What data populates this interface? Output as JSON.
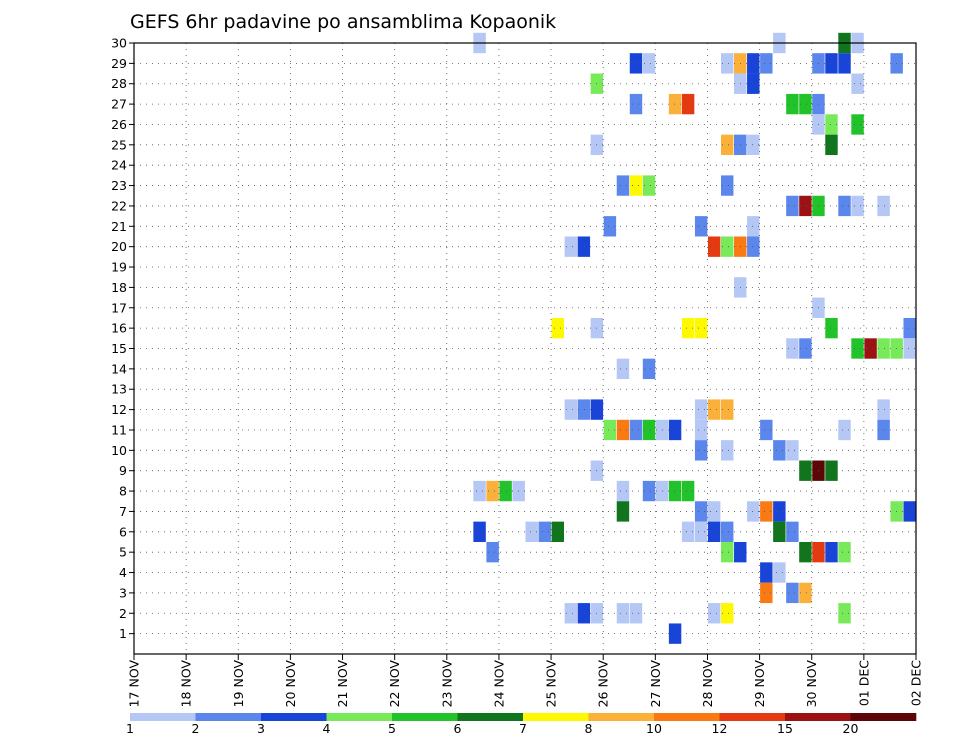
{
  "chart_data": {
    "type": "heatmap",
    "title": "GEFS 6hr padavine po ansamblima Kopaonik",
    "xlabel": "",
    "ylabel": "",
    "x_ticks": [
      "17 NOV",
      "18 NOV",
      "19 NOV",
      "20 NOV",
      "21 NOV",
      "22 NOV",
      "23 NOV",
      "24 NOV",
      "25 NOV",
      "26 NOV",
      "27 NOV",
      "28 NOV",
      "29 NOV",
      "30 NOV",
      "01 DEC",
      "02 DEC"
    ],
    "xlim": [
      0,
      60
    ],
    "y_ticks": [
      1,
      2,
      3,
      4,
      5,
      6,
      7,
      8,
      9,
      10,
      11,
      12,
      13,
      14,
      15,
      16,
      17,
      18,
      19,
      20,
      21,
      22,
      23,
      24,
      25,
      26,
      27,
      28,
      29,
      30
    ],
    "ylim": [
      0,
      30
    ],
    "grid": true,
    "colorbar": {
      "placement": "bottom",
      "labels": [
        "1",
        "2",
        "3",
        "4",
        "5",
        "6",
        "7",
        "8",
        "10",
        "12",
        "15",
        "20"
      ],
      "colors": [
        "#b4c7f5",
        "#5b86ec",
        "#1844d8",
        "#78ea5a",
        "#22c32a",
        "#11751d",
        "#fef800",
        "#fbb03a",
        "#f97a12",
        "#e43a12",
        "#9c1212",
        "#5c0608"
      ]
    },
    "cells": [
      {
        "ens": 30,
        "t": 27,
        "v": 1
      },
      {
        "ens": 30,
        "t": 50,
        "v": 1
      },
      {
        "ens": 30,
        "t": 55,
        "v": 6
      },
      {
        "ens": 30,
        "t": 56,
        "v": 1
      },
      {
        "ens": 29,
        "t": 39,
        "v": 3
      },
      {
        "ens": 29,
        "t": 40,
        "v": 1
      },
      {
        "ens": 29,
        "t": 46,
        "v": 1
      },
      {
        "ens": 29,
        "t": 47,
        "v": 8
      },
      {
        "ens": 29,
        "t": 48,
        "v": 3
      },
      {
        "ens": 29,
        "t": 49,
        "v": 2
      },
      {
        "ens": 29,
        "t": 53,
        "v": 2
      },
      {
        "ens": 29,
        "t": 54,
        "v": 3
      },
      {
        "ens": 29,
        "t": 55,
        "v": 3
      },
      {
        "ens": 29,
        "t": 59,
        "v": 2
      },
      {
        "ens": 28,
        "t": 36,
        "v": 4
      },
      {
        "ens": 28,
        "t": 47,
        "v": 1
      },
      {
        "ens": 28,
        "t": 48,
        "v": 3
      },
      {
        "ens": 28,
        "t": 56,
        "v": 1
      },
      {
        "ens": 27,
        "t": 39,
        "v": 2
      },
      {
        "ens": 27,
        "t": 42,
        "v": 8
      },
      {
        "ens": 27,
        "t": 43,
        "v": 12
      },
      {
        "ens": 27,
        "t": 51,
        "v": 5
      },
      {
        "ens": 27,
        "t": 52,
        "v": 5
      },
      {
        "ens": 27,
        "t": 53,
        "v": 2
      },
      {
        "ens": 26,
        "t": 53,
        "v": 1
      },
      {
        "ens": 26,
        "t": 54,
        "v": 4
      },
      {
        "ens": 26,
        "t": 56,
        "v": 5
      },
      {
        "ens": 25,
        "t": 36,
        "v": 1
      },
      {
        "ens": 25,
        "t": 46,
        "v": 8
      },
      {
        "ens": 25,
        "t": 47,
        "v": 2
      },
      {
        "ens": 25,
        "t": 48,
        "v": 1
      },
      {
        "ens": 25,
        "t": 54,
        "v": 6
      },
      {
        "ens": 23,
        "t": 38,
        "v": 2
      },
      {
        "ens": 23,
        "t": 39,
        "v": 7
      },
      {
        "ens": 23,
        "t": 40,
        "v": 4
      },
      {
        "ens": 23,
        "t": 46,
        "v": 2
      },
      {
        "ens": 22,
        "t": 51,
        "v": 2
      },
      {
        "ens": 22,
        "t": 52,
        "v": 15
      },
      {
        "ens": 22,
        "t": 53,
        "v": 5
      },
      {
        "ens": 22,
        "t": 55,
        "v": 2
      },
      {
        "ens": 22,
        "t": 56,
        "v": 1
      },
      {
        "ens": 22,
        "t": 58,
        "v": 1
      },
      {
        "ens": 21,
        "t": 37,
        "v": 2
      },
      {
        "ens": 21,
        "t": 44,
        "v": 2
      },
      {
        "ens": 21,
        "t": 48,
        "v": 1
      },
      {
        "ens": 20,
        "t": 34,
        "v": 1
      },
      {
        "ens": 20,
        "t": 35,
        "v": 3
      },
      {
        "ens": 20,
        "t": 45,
        "v": 12
      },
      {
        "ens": 20,
        "t": 46,
        "v": 4
      },
      {
        "ens": 20,
        "t": 47,
        "v": 10
      },
      {
        "ens": 20,
        "t": 48,
        "v": 2
      },
      {
        "ens": 18,
        "t": 47,
        "v": 1
      },
      {
        "ens": 17,
        "t": 53,
        "v": 1
      },
      {
        "ens": 16,
        "t": 33,
        "v": 7
      },
      {
        "ens": 16,
        "t": 36,
        "v": 1
      },
      {
        "ens": 16,
        "t": 43,
        "v": 7
      },
      {
        "ens": 16,
        "t": 44,
        "v": 7
      },
      {
        "ens": 16,
        "t": 54,
        "v": 5
      },
      {
        "ens": 16,
        "t": 60,
        "v": 2
      },
      {
        "ens": 15,
        "t": 51,
        "v": 1
      },
      {
        "ens": 15,
        "t": 52,
        "v": 2
      },
      {
        "ens": 15,
        "t": 56,
        "v": 5
      },
      {
        "ens": 15,
        "t": 57,
        "v": 15
      },
      {
        "ens": 15,
        "t": 58,
        "v": 4
      },
      {
        "ens": 15,
        "t": 59,
        "v": 4
      },
      {
        "ens": 15,
        "t": 60,
        "v": 1
      },
      {
        "ens": 14,
        "t": 38,
        "v": 1
      },
      {
        "ens": 14,
        "t": 40,
        "v": 2
      },
      {
        "ens": 12,
        "t": 34,
        "v": 1
      },
      {
        "ens": 12,
        "t": 35,
        "v": 2
      },
      {
        "ens": 12,
        "t": 36,
        "v": 3
      },
      {
        "ens": 12,
        "t": 44,
        "v": 1
      },
      {
        "ens": 12,
        "t": 45,
        "v": 8
      },
      {
        "ens": 12,
        "t": 46,
        "v": 8
      },
      {
        "ens": 12,
        "t": 58,
        "v": 1
      },
      {
        "ens": 11,
        "t": 37,
        "v": 4
      },
      {
        "ens": 11,
        "t": 38,
        "v": 10
      },
      {
        "ens": 11,
        "t": 39,
        "v": 2
      },
      {
        "ens": 11,
        "t": 40,
        "v": 5
      },
      {
        "ens": 11,
        "t": 41,
        "v": 1
      },
      {
        "ens": 11,
        "t": 42,
        "v": 3
      },
      {
        "ens": 11,
        "t": 44,
        "v": 1
      },
      {
        "ens": 11,
        "t": 49,
        "v": 2
      },
      {
        "ens": 11,
        "t": 55,
        "v": 1
      },
      {
        "ens": 11,
        "t": 58,
        "v": 2
      },
      {
        "ens": 10,
        "t": 44,
        "v": 2
      },
      {
        "ens": 10,
        "t": 46,
        "v": 1
      },
      {
        "ens": 10,
        "t": 50,
        "v": 2
      },
      {
        "ens": 10,
        "t": 51,
        "v": 1
      },
      {
        "ens": 9,
        "t": 36,
        "v": 1
      },
      {
        "ens": 9,
        "t": 52,
        "v": 6
      },
      {
        "ens": 9,
        "t": 53,
        "v": 20
      },
      {
        "ens": 9,
        "t": 54,
        "v": 6
      },
      {
        "ens": 8,
        "t": 27,
        "v": 1
      },
      {
        "ens": 8,
        "t": 28,
        "v": 8
      },
      {
        "ens": 8,
        "t": 29,
        "v": 5
      },
      {
        "ens": 8,
        "t": 30,
        "v": 1
      },
      {
        "ens": 8,
        "t": 38,
        "v": 1
      },
      {
        "ens": 8,
        "t": 40,
        "v": 2
      },
      {
        "ens": 8,
        "t": 41,
        "v": 1
      },
      {
        "ens": 8,
        "t": 42,
        "v": 5
      },
      {
        "ens": 8,
        "t": 43,
        "v": 5
      },
      {
        "ens": 7,
        "t": 38,
        "v": 6
      },
      {
        "ens": 7,
        "t": 44,
        "v": 2
      },
      {
        "ens": 7,
        "t": 45,
        "v": 1
      },
      {
        "ens": 7,
        "t": 48,
        "v": 1
      },
      {
        "ens": 7,
        "t": 49,
        "v": 10
      },
      {
        "ens": 7,
        "t": 50,
        "v": 3
      },
      {
        "ens": 7,
        "t": 59,
        "v": 4
      },
      {
        "ens": 7,
        "t": 60,
        "v": 3
      },
      {
        "ens": 6,
        "t": 27,
        "v": 3
      },
      {
        "ens": 6,
        "t": 31,
        "v": 1
      },
      {
        "ens": 6,
        "t": 32,
        "v": 2
      },
      {
        "ens": 6,
        "t": 33,
        "v": 6
      },
      {
        "ens": 6,
        "t": 43,
        "v": 1
      },
      {
        "ens": 6,
        "t": 44,
        "v": 1
      },
      {
        "ens": 6,
        "t": 45,
        "v": 3
      },
      {
        "ens": 6,
        "t": 46,
        "v": 2
      },
      {
        "ens": 6,
        "t": 50,
        "v": 6
      },
      {
        "ens": 6,
        "t": 51,
        "v": 2
      },
      {
        "ens": 5,
        "t": 28,
        "v": 2
      },
      {
        "ens": 5,
        "t": 46,
        "v": 4
      },
      {
        "ens": 5,
        "t": 47,
        "v": 3
      },
      {
        "ens": 5,
        "t": 52,
        "v": 6
      },
      {
        "ens": 5,
        "t": 53,
        "v": 12
      },
      {
        "ens": 5,
        "t": 54,
        "v": 3
      },
      {
        "ens": 5,
        "t": 55,
        "v": 4
      },
      {
        "ens": 4,
        "t": 49,
        "v": 3
      },
      {
        "ens": 4,
        "t": 50,
        "v": 1
      },
      {
        "ens": 3,
        "t": 49,
        "v": 10
      },
      {
        "ens": 3,
        "t": 51,
        "v": 2
      },
      {
        "ens": 3,
        "t": 52,
        "v": 8
      },
      {
        "ens": 2,
        "t": 34,
        "v": 1
      },
      {
        "ens": 2,
        "t": 35,
        "v": 3
      },
      {
        "ens": 2,
        "t": 36,
        "v": 1
      },
      {
        "ens": 2,
        "t": 38,
        "v": 1
      },
      {
        "ens": 2,
        "t": 39,
        "v": 1
      },
      {
        "ens": 2,
        "t": 45,
        "v": 1
      },
      {
        "ens": 2,
        "t": 46,
        "v": 7
      },
      {
        "ens": 2,
        "t": 55,
        "v": 4
      },
      {
        "ens": 1,
        "t": 42,
        "v": 3
      }
    ]
  }
}
